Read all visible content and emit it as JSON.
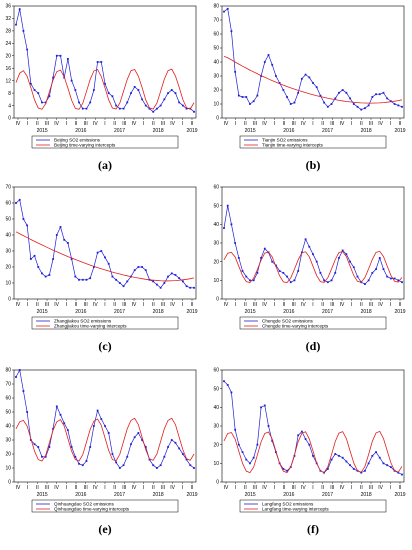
{
  "colors": {
    "emissions": "#1f1fd6",
    "intercepts": "#e0201e",
    "axis": "#000000",
    "grid": "#bfbfbf"
  },
  "chart_data": [
    {
      "type": "line",
      "panel": "a",
      "caption": "(a)",
      "ylim": [
        0,
        36
      ],
      "yticks": [
        0,
        4,
        8,
        12,
        16,
        20,
        24,
        28,
        32,
        36
      ],
      "grid": false,
      "legend": [
        "Beijing SO2 emissions",
        "Beijing time-varying intercepts"
      ],
      "series": [
        {
          "name": "Beijing SO2 emissions",
          "values": [
            30,
            35,
            28,
            22,
            11,
            9,
            8,
            5,
            5,
            7,
            13,
            20,
            20,
            13,
            19,
            12,
            9,
            5,
            3,
            3,
            5,
            9,
            18,
            18,
            11,
            8,
            7,
            4,
            3,
            3,
            5,
            8,
            10,
            9,
            6,
            4,
            3,
            2,
            3,
            4,
            6,
            8,
            9,
            8,
            5,
            4,
            3,
            3,
            2
          ]
        },
        {
          "name": "Beijing time-varying intercepts",
          "values": [
            11.4,
            14.4,
            15.2,
            13.4,
            9.8,
            5.8,
            3.2,
            2.8,
            4.6,
            8.4,
            12.2,
            14.9,
            15.4,
            13.2,
            9.6,
            5.7,
            3.1,
            2.8,
            4.7,
            8.5,
            12.4,
            15.1,
            15.6,
            13.3,
            9.7,
            5.8,
            3.2,
            2.9,
            4.8,
            8.6,
            12.4,
            15.2,
            15.6,
            13.4,
            9.8,
            5.8,
            3.2,
            2.9,
            4.8,
            8.6,
            12.5,
            15.2,
            15.7,
            13.5,
            9.9,
            5.9,
            3.3,
            2.9,
            4.9
          ]
        }
      ]
    },
    {
      "type": "line",
      "panel": "b",
      "caption": "(b)",
      "ylim": [
        0,
        80
      ],
      "yticks": [
        0,
        10,
        20,
        30,
        40,
        50,
        60,
        70,
        80
      ],
      "grid": false,
      "legend": [
        "Tianjin SO2 emissions",
        "Tianjin time-varying intercepts"
      ],
      "series": [
        {
          "name": "Tianjin SO2 emissions",
          "values": [
            76,
            78,
            62,
            33,
            16,
            15,
            15,
            10,
            12,
            16,
            30,
            40,
            45,
            38,
            30,
            25,
            20,
            15,
            10,
            11,
            18,
            28,
            31,
            29,
            25,
            22,
            16,
            11,
            8,
            10,
            14,
            18,
            20,
            18,
            14,
            10,
            8,
            6,
            7,
            9,
            15,
            17,
            17,
            18,
            14,
            12,
            10,
            9,
            8
          ]
        },
        {
          "name": "Tianjin time-varying intercepts",
          "values": [
            44,
            43,
            41.5,
            40,
            38.5,
            37,
            35.6,
            34.2,
            32.9,
            31.6,
            30.3,
            29.1,
            27.9,
            26.7,
            25.6,
            24.5,
            23.5,
            22.5,
            21.5,
            20.6,
            19.7,
            18.9,
            18.1,
            17.3,
            16.6,
            15.9,
            15.3,
            14.7,
            14.1,
            13.6,
            13.1,
            12.6,
            12.2,
            11.8,
            11.5,
            11.2,
            11,
            10.8,
            10.7,
            10.6,
            10.6,
            10.7,
            10.8,
            11,
            11.3,
            11.6,
            12,
            12.4,
            13
          ]
        }
      ]
    },
    {
      "type": "line",
      "panel": "c",
      "caption": "(c)",
      "ylim": [
        0,
        70
      ],
      "yticks": [
        0,
        10,
        20,
        30,
        40,
        50,
        60,
        70
      ],
      "grid": false,
      "legend": [
        "Zhangjiakou SO2 emissions",
        "Zhangjiakou time-varying intercepts"
      ],
      "series": [
        {
          "name": "Zhangjiakou SO2 emissions",
          "values": [
            60,
            62,
            50,
            46,
            25,
            27,
            20,
            16,
            14,
            15,
            25,
            40,
            45,
            37,
            35,
            25,
            14,
            12,
            12,
            12,
            13,
            20,
            29,
            30,
            26,
            22,
            14,
            12,
            10,
            8,
            11,
            14,
            18,
            20,
            20,
            18,
            12,
            11,
            9,
            7,
            10,
            14,
            16,
            15,
            13,
            11,
            8,
            7,
            7
          ]
        },
        {
          "name": "Zhangjiakou time-varying intercepts",
          "values": [
            42,
            40.8,
            39.6,
            38.4,
            37.2,
            36,
            34.9,
            33.8,
            32.7,
            31.6,
            30.5,
            29.5,
            28.5,
            27.5,
            26.5,
            25.6,
            24.7,
            23.8,
            22.9,
            22,
            21.2,
            20.4,
            19.6,
            18.9,
            18.2,
            17.5,
            16.8,
            16.2,
            15.6,
            15,
            14.5,
            14,
            13.5,
            13.1,
            12.7,
            12.3,
            12,
            11.8,
            11.6,
            11.4,
            11.3,
            11.3,
            11.4,
            11.5,
            11.7,
            12,
            12.3,
            12.7,
            13.2
          ]
        }
      ]
    },
    {
      "type": "line",
      "panel": "d",
      "caption": "(d)",
      "ylim": [
        0,
        60
      ],
      "yticks": [
        0,
        10,
        20,
        30,
        40,
        50,
        60
      ],
      "grid": false,
      "legend": [
        "Chengde SO2 emissions",
        "Chengde time-varying intercepts"
      ],
      "series": [
        {
          "name": "Chengde SO2 emissions",
          "values": [
            38,
            50,
            40,
            30,
            22,
            15,
            12,
            10,
            10,
            14,
            22,
            27,
            25,
            20,
            18,
            15,
            14,
            12,
            9,
            10,
            15,
            25,
            32,
            28,
            24,
            20,
            14,
            10,
            9,
            10,
            14,
            22,
            26,
            24,
            20,
            17,
            12,
            9,
            8,
            10,
            14,
            16,
            22,
            16,
            12,
            11,
            11,
            10,
            9
          ]
        },
        {
          "name": "Chengde time-varying intercepts",
          "values": [
            21,
            24.5,
            25,
            22.5,
            17.5,
            12.5,
            9.3,
            8.8,
            11.2,
            15.8,
            20.8,
            24.6,
            25.2,
            22.5,
            17.4,
            12.4,
            9.2,
            8.8,
            11.3,
            16,
            21,
            24.8,
            25.3,
            22.6,
            17.5,
            12.5,
            9.3,
            8.9,
            11.4,
            16.1,
            21.1,
            24.9,
            25.4,
            22.7,
            17.6,
            12.6,
            9.4,
            9,
            11.5,
            16.2,
            21.2,
            25,
            25.5,
            22.8,
            17.7,
            12.7,
            9.5,
            9.1,
            11.6
          ]
        }
      ]
    },
    {
      "type": "line",
      "panel": "e",
      "caption": "(e)",
      "ylim": [
        0,
        80
      ],
      "yticks": [
        0,
        10,
        20,
        30,
        40,
        50,
        60,
        70,
        80
      ],
      "grid": false,
      "legend": [
        "Qinhuangdao SO2 emissions",
        "Qinhuangdao time-varying intercepts"
      ],
      "series": [
        {
          "name": "Qinhuangdao SO2 emissions",
          "values": [
            75,
            80,
            65,
            50,
            30,
            27,
            25,
            18,
            18,
            25,
            38,
            54,
            48,
            42,
            37,
            25,
            18,
            13,
            12,
            15,
            25,
            40,
            51,
            45,
            40,
            35,
            20,
            14,
            10,
            12,
            18,
            27,
            32,
            35,
            30,
            25,
            16,
            12,
            10,
            12,
            18,
            25,
            30,
            28,
            24,
            20,
            16,
            12,
            10
          ]
        },
        {
          "name": "Qinhuangdao time-varying intercepts",
          "values": [
            38,
            43,
            44,
            40,
            31,
            22,
            16,
            15,
            19,
            28,
            37,
            43,
            44.5,
            40,
            31,
            22,
            16,
            15,
            19.5,
            28.5,
            37.5,
            43.5,
            45,
            40.5,
            31.5,
            22.5,
            16,
            15.2,
            19.8,
            29,
            38,
            44,
            45.5,
            41,
            32,
            23,
            16.5,
            15.5,
            20,
            29,
            38,
            44,
            45.5,
            41,
            32,
            23,
            16.5,
            15.5,
            20
          ]
        }
      ]
    },
    {
      "type": "line",
      "panel": "f",
      "caption": "(f)",
      "ylim": [
        0,
        60
      ],
      "yticks": [
        0,
        10,
        20,
        30,
        40,
        50,
        60
      ],
      "grid": false,
      "legend": [
        "Langfang SO2 emissions",
        "Langfang time-varying intercepts"
      ],
      "series": [
        {
          "name": "Langfang SO2 emissions",
          "values": [
            54,
            52,
            48,
            28,
            20,
            16,
            12,
            10,
            13,
            20,
            40,
            41,
            30,
            22,
            16,
            10,
            7,
            6,
            8,
            14,
            25,
            27,
            23,
            20,
            14,
            10,
            6,
            5,
            7,
            12,
            15,
            14,
            13,
            11,
            9,
            7,
            6,
            5,
            6,
            10,
            14,
            16,
            13,
            10,
            9,
            8,
            6,
            5,
            4
          ]
        },
        {
          "name": "Langfang time-varying intercepts",
          "values": [
            22,
            26,
            26.5,
            23,
            16.5,
            10,
            5.8,
            5,
            8,
            14.5,
            21.5,
            26,
            26.8,
            23,
            16.5,
            10,
            5.8,
            5,
            8.1,
            14.6,
            21.6,
            26.1,
            26.9,
            23.1,
            16.6,
            10.1,
            5.9,
            5.1,
            8.2,
            14.7,
            21.7,
            26.2,
            27,
            23.2,
            16.7,
            10.2,
            6,
            5.2,
            8.3,
            14.8,
            21.8,
            26.3,
            27.1,
            23.3,
            16.8,
            10.3,
            6.1,
            5.3,
            8.4
          ]
        }
      ]
    }
  ],
  "quarter_labels": [
    "IV",
    "I",
    "II",
    "III",
    "IV",
    "I",
    "II",
    "III",
    "IV",
    "I",
    "II",
    "III",
    "IV",
    "I",
    "II",
    "III",
    "IV",
    "I",
    "II"
  ],
  "year_labels": [
    "2015",
    "2016",
    "2017",
    "2018",
    "2019"
  ]
}
